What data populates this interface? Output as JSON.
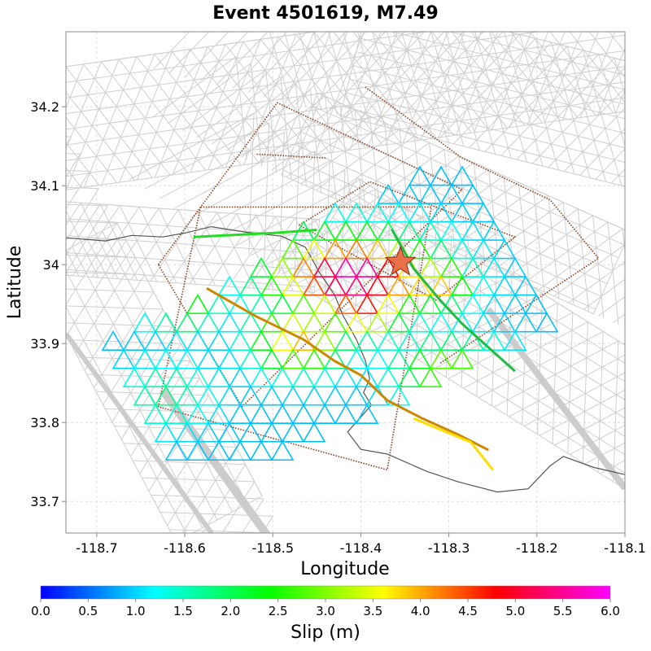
{
  "chart_data": {
    "type": "map",
    "title": "Event 4501619, M7.49",
    "xlabel": "Longitude",
    "ylabel": "Latitude",
    "xlim": [
      -118.735,
      -118.1
    ],
    "ylim": [
      33.66,
      34.295
    ],
    "x_ticks": [
      -118.7,
      -118.6,
      -118.5,
      -118.4,
      -118.3,
      -118.2,
      -118.1
    ],
    "x_tick_labels": [
      "-118.7",
      "-118.6",
      "-118.5",
      "-118.4",
      "-118.3",
      "-118.2",
      "-118.1"
    ],
    "y_ticks": [
      33.7,
      33.8,
      33.9,
      34.0,
      34.1,
      34.2
    ],
    "y_tick_labels": [
      "33.7",
      "33.8",
      "33.9",
      "34",
      "34.1",
      "34.2"
    ],
    "grid": true,
    "hypocenter": {
      "lon": -118.355,
      "lat": 34.003,
      "marker": "star",
      "color": "#e8704a"
    },
    "colorbar": {
      "label": "Slip (m)",
      "range": [
        0.0,
        6.0
      ],
      "ticks": [
        0.0,
        0.5,
        1.0,
        1.5,
        2.0,
        2.5,
        3.0,
        3.5,
        4.0,
        4.5,
        5.0,
        5.5,
        6.0
      ],
      "tick_labels": [
        "0.0",
        "0.5",
        "1.0",
        "1.5",
        "2.0",
        "2.5",
        "3.0",
        "3.5",
        "4.0",
        "4.5",
        "5.0",
        "5.5",
        "6.0"
      ],
      "colors": [
        "#0000ff",
        "#00ffff",
        "#00ff00",
        "#ffff00",
        "#ff0000",
        "#ff00ff"
      ]
    },
    "rupture_outlines": [
      [
        [
          -118.47,
          34.05
        ],
        [
          -118.39,
          34.105
        ],
        [
          -118.225,
          34.035
        ],
        [
          -118.315,
          33.955
        ],
        [
          -118.47,
          34.05
        ]
      ],
      [
        [
          -118.582,
          34.073
        ],
        [
          -118.32,
          34.073
        ],
        [
          -118.37,
          33.74
        ],
        [
          -118.63,
          33.82
        ],
        [
          -118.582,
          34.073
        ]
      ],
      [
        [
          -118.63,
          34.0
        ],
        [
          -118.495,
          34.205
        ],
        [
          -118.285,
          34.095
        ],
        [
          -118.535,
          33.82
        ],
        [
          -118.63,
          34.0
        ]
      ],
      [
        [
          -118.44,
          34.135
        ],
        [
          -118.52,
          34.14
        ]
      ],
      [
        [
          -118.395,
          34.225
        ],
        [
          -118.285,
          34.135
        ],
        [
          -118.185,
          34.082
        ],
        [
          -118.13,
          34.008
        ],
        [
          -118.31,
          33.875
        ]
      ]
    ],
    "coastline": [
      [
        -118.735,
        34.034
      ],
      [
        -118.69,
        34.03
      ],
      [
        -118.66,
        34.037
      ],
      [
        -118.625,
        34.035
      ],
      [
        -118.6,
        34.04
      ],
      [
        -118.57,
        34.048
      ],
      [
        -118.53,
        34.041
      ],
      [
        -118.49,
        34.036
      ],
      [
        -118.463,
        34.022
      ],
      [
        -118.447,
        33.99
      ],
      [
        -118.43,
        33.962
      ],
      [
        -118.42,
        33.935
      ],
      [
        -118.405,
        33.905
      ],
      [
        -118.395,
        33.879
      ],
      [
        -118.39,
        33.855
      ],
      [
        -118.397,
        33.838
      ],
      [
        -118.388,
        33.822
      ],
      [
        -118.415,
        33.788
      ],
      [
        -118.4,
        33.766
      ],
      [
        -118.37,
        33.76
      ],
      [
        -118.325,
        33.738
      ],
      [
        -118.29,
        33.725
      ],
      [
        -118.245,
        33.712
      ],
      [
        -118.21,
        33.716
      ],
      [
        -118.185,
        33.745
      ],
      [
        -118.17,
        33.757
      ],
      [
        -118.135,
        33.743
      ],
      [
        -118.1,
        33.734
      ]
    ],
    "fault_traces": [
      {
        "color": "#cc8800",
        "points": [
          [
            -118.575,
            33.97
          ],
          [
            -118.52,
            33.935
          ],
          [
            -118.465,
            33.905
          ],
          [
            -118.43,
            33.878
          ],
          [
            -118.4,
            33.86
          ],
          [
            -118.37,
            33.828
          ],
          [
            -118.33,
            33.805
          ],
          [
            -118.29,
            33.785
          ],
          [
            -118.255,
            33.765
          ]
        ]
      },
      {
        "color": "#22bb44",
        "points": [
          [
            -118.365,
            34.045
          ],
          [
            -118.34,
            33.995
          ],
          [
            -118.31,
            33.955
          ],
          [
            -118.285,
            33.925
          ],
          [
            -118.255,
            33.895
          ],
          [
            -118.225,
            33.865
          ]
        ]
      },
      {
        "color": "#ffdd00",
        "points": [
          [
            -118.34,
            33.805
          ],
          [
            -118.275,
            33.775
          ],
          [
            -118.25,
            33.74
          ]
        ]
      },
      {
        "color": "#22dd22",
        "points": [
          [
            -118.59,
            34.035
          ],
          [
            -118.5,
            34.04
          ],
          [
            -118.45,
            34.044
          ]
        ]
      }
    ],
    "slip_patches": [
      {
        "center": [
          -118.41,
          34.0
        ],
        "rx": 0.09,
        "ry": 0.05,
        "slip": 5.8
      },
      {
        "center": [
          -118.4,
          33.96
        ],
        "rx": 0.05,
        "ry": 0.035,
        "slip": 4.8
      },
      {
        "center": [
          -118.32,
          33.99
        ],
        "rx": 0.04,
        "ry": 0.03,
        "slip": 4.2
      },
      {
        "center": [
          -118.47,
          33.92
        ],
        "rx": 0.05,
        "ry": 0.04,
        "slip": 4.0
      },
      {
        "center": [
          -118.3,
          33.88
        ],
        "rx": 0.06,
        "ry": 0.04,
        "slip": 3.0
      },
      {
        "center": [
          -118.6,
          33.96
        ],
        "rx": 0.04,
        "ry": 0.03,
        "slip": 2.6
      },
      {
        "center": [
          -118.62,
          33.85
        ],
        "rx": 0.05,
        "ry": 0.04,
        "slip": 1.8
      }
    ]
  }
}
